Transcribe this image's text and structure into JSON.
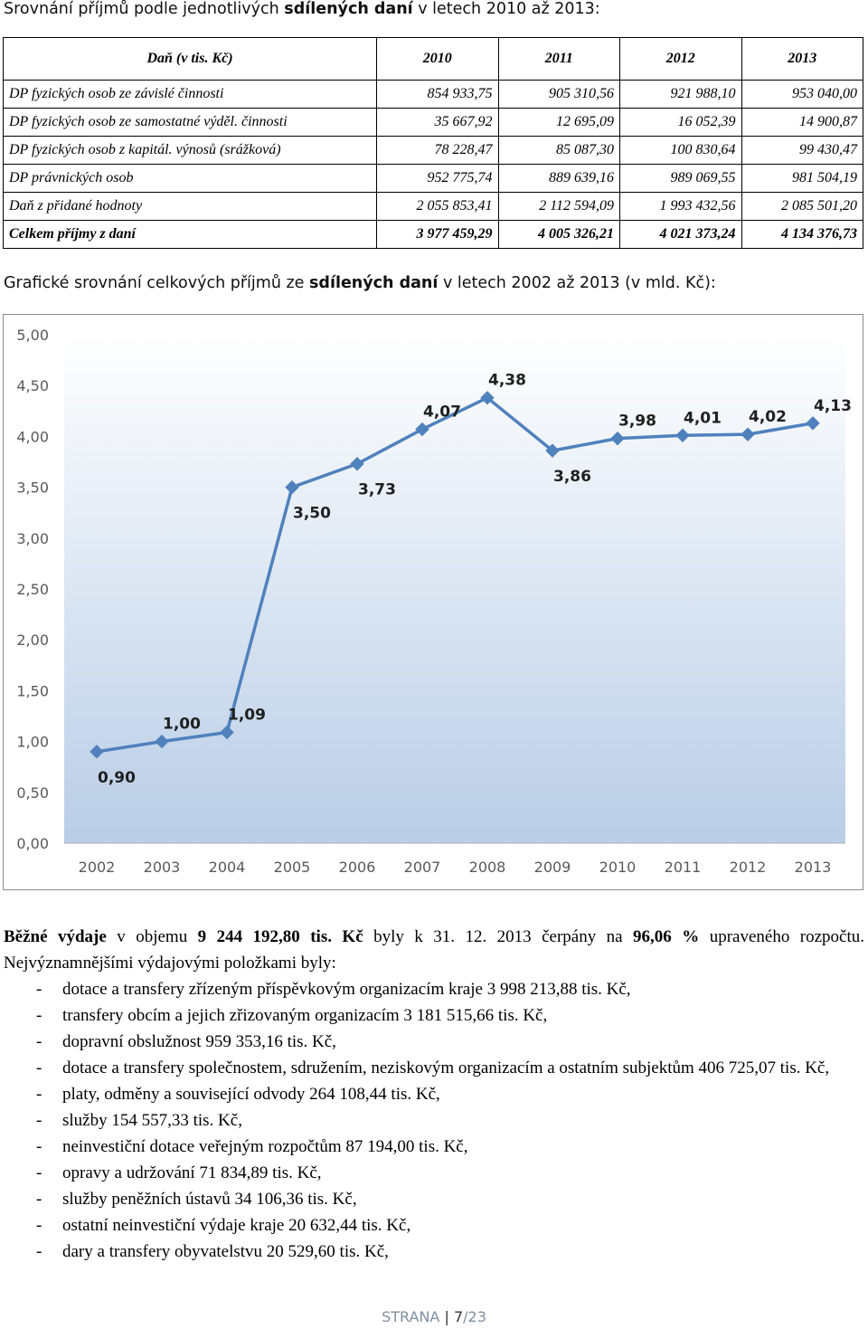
{
  "table_heading": {
    "before": "Srovnání příjmů podle jednotlivých ",
    "bold": "sdílených daní",
    "after": " v letech 2010 až 2013:"
  },
  "table": {
    "header": [
      "Daň (v tis. Kč)",
      "2010",
      "2011",
      "2012",
      "2013"
    ],
    "rows": [
      [
        "DP fyzických osob ze závislé činnosti",
        "854 933,75",
        "905 310,56",
        "921 988,10",
        "953 040,00"
      ],
      [
        "DP fyzických osob ze samostatné výděl. činnosti",
        "35 667,92",
        "12 695,09",
        "16 052,39",
        "14 900,87"
      ],
      [
        "DP fyzických osob z kapitál. výnosů (srážková)",
        "78 228,47",
        "85 087,30",
        "100 830,64",
        "99 430,47"
      ],
      [
        "DP právnických osob",
        "952 775,74",
        "889 639,16",
        "989 069,55",
        "981 504,19"
      ],
      [
        "Daň z přidané hodnoty",
        "2 055 853,41",
        "2 112 594,09",
        "1 993 432,56",
        "2 085 501,20"
      ]
    ],
    "total": [
      "Celkem příjmy z daní",
      "3 977 459,29",
      "4 005 326,21",
      "4 021 373,24",
      "4 134 376,73"
    ]
  },
  "chart_heading": {
    "before": "Grafické srovnání celkových příjmů ze ",
    "bold": "sdílených daní",
    "after": " v letech 2002 až 2013 (v mld. Kč):"
  },
  "chart_data": {
    "type": "line",
    "x": [
      "2002",
      "2003",
      "2004",
      "2005",
      "2006",
      "2007",
      "2008",
      "2009",
      "2010",
      "2011",
      "2012",
      "2013"
    ],
    "series": [
      {
        "values": [
          0.9,
          1.0,
          1.09,
          3.5,
          3.73,
          4.07,
          4.38,
          3.86,
          3.98,
          4.01,
          4.02,
          4.13
        ]
      }
    ],
    "data_labels": [
      "0,90",
      "1,00",
      "1,09",
      "3,50",
      "3,73",
      "4,07",
      "4,38",
      "3,86",
      "3,98",
      "4,01",
      "4,02",
      "4,13"
    ],
    "label_position": [
      "below",
      "above",
      "above",
      "below",
      "below",
      "above",
      "above",
      "below",
      "above",
      "above",
      "above",
      "above"
    ],
    "y_ticks": [
      "0,00",
      "0,50",
      "1,00",
      "1,50",
      "2,00",
      "2,50",
      "3,00",
      "3,50",
      "4,00",
      "4,50",
      "5,00"
    ],
    "ylim": [
      0,
      5
    ],
    "grid": false,
    "legend": "none",
    "colors": {
      "line": "#4f81bd",
      "plot_top": "#ffffff",
      "plot_bottom": "#b9cde6",
      "label": "#1f1f1f",
      "axis_text": "#595959"
    }
  },
  "expenses_paragraph": {
    "p1": "Běžné výdaje",
    "p2": " v objemu ",
    "p3": "9 244 192,80 tis. Kč",
    "p4": " byly k 31. 12. 2013 čerpány na ",
    "p5": "96,06 %",
    "p6": " upraveného rozpočtu. Nejvýznamnějšími výdajovými položkami byly:"
  },
  "expense_items": [
    "dotace a transfery zřízeným příspěvkovým organizacím kraje 3 998 213,88  tis. Kč,",
    "transfery obcím a jejich zřizovaným organizacím 3 181 515,66 tis. Kč,",
    "dopravní obslužnost 959 353,16 tis. Kč,",
    "dotace a transfery společnostem, sdružením, neziskovým organizacím a ostatním subjektům 406 725,07 tis.  Kč,",
    "platy, odměny a související odvody 264 108,44 tis. Kč,",
    "služby 154 557,33 tis. Kč,",
    "neinvestiční dotace veřejným rozpočtům 87 194,00 tis. Kč,",
    "opravy a udržování 71 834,89 tis. Kč,",
    "služby peněžních ústavů 34 106,36 tis. Kč,",
    "ostatní neinvestiční výdaje kraje 20 632,44 tis. Kč,",
    "dary a transfery obyvatelstvu 20 529,60 tis. Kč,"
  ],
  "list_dash": "-",
  "footer": {
    "label": "STRANA",
    "separator": "|",
    "page": "7",
    "total": "/23"
  }
}
